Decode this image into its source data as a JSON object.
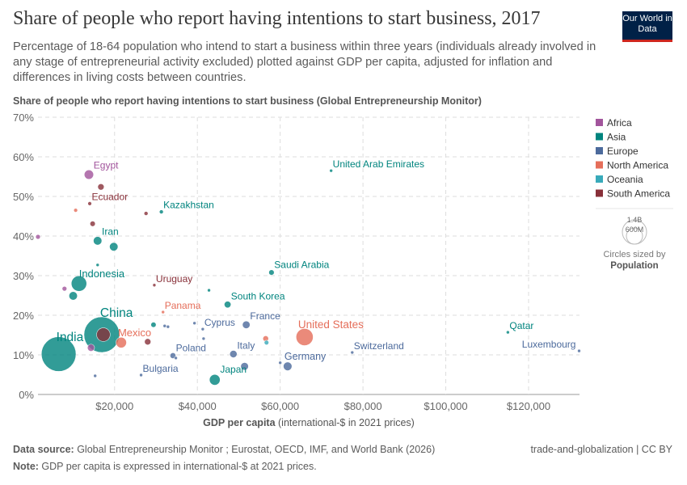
{
  "header": {
    "title": "Share of people who report having intentions to start business, 2017",
    "subtitle": "Percentage of 18-64 population who intend to start a business within three years (individuals already involved in any stage of entrepreneurial activity excluded) plotted against GDP per capita, adjusted for inflation and differences in living costs between countries.",
    "logo": "Our World in Data"
  },
  "chart_data": {
    "type": "scatter",
    "ylabel": "Share of people who report having intentions to start business (Global Entrepreneurship Monitor)",
    "xlabel_bold": "GDP per capita",
    "xlabel_rest": " (international-$ in 2021 prices)",
    "xlim": [
      1500,
      132300
    ],
    "ylim": [
      0,
      70
    ],
    "xticks": [
      {
        "v": 20000,
        "label": "$20,000"
      },
      {
        "v": 40000,
        "label": "$40,000"
      },
      {
        "v": 60000,
        "label": "$60,000"
      },
      {
        "v": 80000,
        "label": "$80,000"
      },
      {
        "v": 100000,
        "label": "$100,000"
      },
      {
        "v": 120000,
        "label": "$120,000"
      }
    ],
    "yticks": [
      {
        "v": 0,
        "label": "0%"
      },
      {
        "v": 10,
        "label": "10%"
      },
      {
        "v": 20,
        "label": "20%"
      },
      {
        "v": 30,
        "label": "30%"
      },
      {
        "v": 40,
        "label": "40%"
      },
      {
        "v": 50,
        "label": "50%"
      },
      {
        "v": 60,
        "label": "60%"
      },
      {
        "v": 70,
        "label": "70%"
      }
    ],
    "grid": true,
    "legend_position": "right",
    "regions": [
      {
        "name": "Africa",
        "color": "#a2559c"
      },
      {
        "name": "Asia",
        "color": "#00847e"
      },
      {
        "name": "Europe",
        "color": "#4c6a9c"
      },
      {
        "name": "North America",
        "color": "#e56e5a"
      },
      {
        "name": "Oceania",
        "color": "#38aaba"
      },
      {
        "name": "South America",
        "color": "#883039"
      }
    ],
    "size_legend": {
      "large": "1.4B",
      "small": "600M",
      "caption": "Circles sized by",
      "variable": "Population"
    },
    "points": [
      {
        "label": "China",
        "x": 16900,
        "y": 15.1,
        "pop": 1400,
        "region": "Asia"
      },
      {
        "label": "India",
        "x": 6500,
        "y": 10.2,
        "pop": 1330,
        "region": "Asia"
      },
      {
        "label": "",
        "x": 17300,
        "y": 15.1,
        "pop": 205,
        "region": "South America"
      },
      {
        "label": "Indonesia",
        "x": 11400,
        "y": 28.0,
        "pop": 265,
        "region": "Asia"
      },
      {
        "label": "United States",
        "x": 65900,
        "y": 14.5,
        "pop": 325,
        "region": "North America"
      },
      {
        "label": "Egypt",
        "x": 13800,
        "y": 55.5,
        "pop": 97,
        "region": "Africa"
      },
      {
        "label": "",
        "x": 16700,
        "y": 52.4,
        "pop": 45,
        "region": "South America"
      },
      {
        "label": "Ecuador",
        "x": 14000,
        "y": 48.2,
        "pop": 17,
        "region": "South America"
      },
      {
        "label": "",
        "x": 10600,
        "y": 46.5,
        "pop": 17,
        "region": "North America"
      },
      {
        "label": "",
        "x": 14700,
        "y": 43.1,
        "pop": 32,
        "region": "South America"
      },
      {
        "label": "",
        "x": 1500,
        "y": 39.8,
        "pop": 25,
        "region": "Africa"
      },
      {
        "label": "Iran",
        "x": 15900,
        "y": 38.8,
        "pop": 81,
        "region": "Asia"
      },
      {
        "label": "",
        "x": 19800,
        "y": 37.3,
        "pop": 81,
        "region": "Asia"
      },
      {
        "label": "",
        "x": 27600,
        "y": 45.7,
        "pop": 18,
        "region": "South America"
      },
      {
        "label": "Kazakhstan",
        "x": 31300,
        "y": 46.1,
        "pop": 18,
        "region": "Asia"
      },
      {
        "label": "United Arab Emirates",
        "x": 72300,
        "y": 56.5,
        "pop": 9,
        "region": "Asia"
      },
      {
        "label": "Saudi Arabia",
        "x": 57900,
        "y": 30.8,
        "pop": 33,
        "region": "Asia"
      },
      {
        "label": "",
        "x": 15900,
        "y": 32.7,
        "pop": 9,
        "region": "Asia"
      },
      {
        "label": "",
        "x": 7900,
        "y": 26.7,
        "pop": 25,
        "region": "Africa"
      },
      {
        "label": "",
        "x": 10000,
        "y": 24.9,
        "pop": 80,
        "region": "Asia"
      },
      {
        "label": "Uruguay",
        "x": 29600,
        "y": 27.6,
        "pop": 3.4,
        "region": "South America"
      },
      {
        "label": "",
        "x": 42800,
        "y": 26.3,
        "pop": 5,
        "region": "Asia"
      },
      {
        "label": "South Korea",
        "x": 47300,
        "y": 22.7,
        "pop": 51,
        "region": "Asia"
      },
      {
        "label": "Panama",
        "x": 31700,
        "y": 20.8,
        "pop": 4,
        "region": "North America"
      },
      {
        "label": "",
        "x": 29400,
        "y": 17.6,
        "pop": 31,
        "region": "Asia"
      },
      {
        "label": "",
        "x": 32100,
        "y": 17.3,
        "pop": 5,
        "region": "Europe"
      },
      {
        "label": "",
        "x": 32900,
        "y": 17.1,
        "pop": 5,
        "region": "Europe"
      },
      {
        "label": "",
        "x": 39300,
        "y": 18.0,
        "pop": 5,
        "region": "Europe"
      },
      {
        "label": "Cyprus",
        "x": 41300,
        "y": 16.5,
        "pop": 1.2,
        "region": "Europe"
      },
      {
        "label": "",
        "x": 41500,
        "y": 14.1,
        "pop": 4,
        "region": "Europe"
      },
      {
        "label": "France",
        "x": 51800,
        "y": 17.6,
        "pop": 65,
        "region": "Europe"
      },
      {
        "label": "",
        "x": 56500,
        "y": 14.1,
        "pop": 37,
        "region": "North America"
      },
      {
        "label": "",
        "x": 56700,
        "y": 13.1,
        "pop": 24,
        "region": "Oceania"
      },
      {
        "label": "",
        "x": 14300,
        "y": 11.8,
        "pop": 57,
        "region": "Africa"
      },
      {
        "label": "Mexico",
        "x": 21600,
        "y": 13.1,
        "pop": 125,
        "region": "North America"
      },
      {
        "label": "",
        "x": 28000,
        "y": 13.3,
        "pop": 45,
        "region": "South America"
      },
      {
        "label": "Poland",
        "x": 34100,
        "y": 9.8,
        "pop": 38,
        "region": "Europe"
      },
      {
        "label": "",
        "x": 34800,
        "y": 9.2,
        "pop": 10,
        "region": "Europe"
      },
      {
        "label": "Italy",
        "x": 48700,
        "y": 10.2,
        "pop": 60,
        "region": "Europe"
      },
      {
        "label": "",
        "x": 51400,
        "y": 7.1,
        "pop": 67,
        "region": "Europe"
      },
      {
        "label": "",
        "x": 60000,
        "y": 8.0,
        "pop": 9,
        "region": "Europe"
      },
      {
        "label": "Germany",
        "x": 61800,
        "y": 7.1,
        "pop": 83,
        "region": "Europe"
      },
      {
        "label": "Switzerland",
        "x": 77400,
        "y": 10.6,
        "pop": 8.5,
        "region": "Europe"
      },
      {
        "label": "Qatar",
        "x": 115000,
        "y": 15.7,
        "pop": 2.7,
        "region": "Asia"
      },
      {
        "label": "Luxembourg",
        "x": 132200,
        "y": 11.0,
        "pop": 0.6,
        "region": "Europe"
      },
      {
        "label": "Bulgaria",
        "x": 26400,
        "y": 4.9,
        "pop": 7,
        "region": "Europe"
      },
      {
        "label": "",
        "x": 15300,
        "y": 4.7,
        "pop": 4,
        "region": "Europe"
      },
      {
        "label": "Japan",
        "x": 44200,
        "y": 3.7,
        "pop": 127,
        "region": "Asia"
      }
    ]
  },
  "footer": {
    "source_label": "Data source:",
    "source": " Global Entrepreneurship Monitor ; Eurostat, OECD, IMF, and World Bank (2026)",
    "note_label": "Note:",
    "note": " GDP per capita is expressed in international-$ at 2021 prices.",
    "right": "trade-and-globalization | CC BY"
  }
}
